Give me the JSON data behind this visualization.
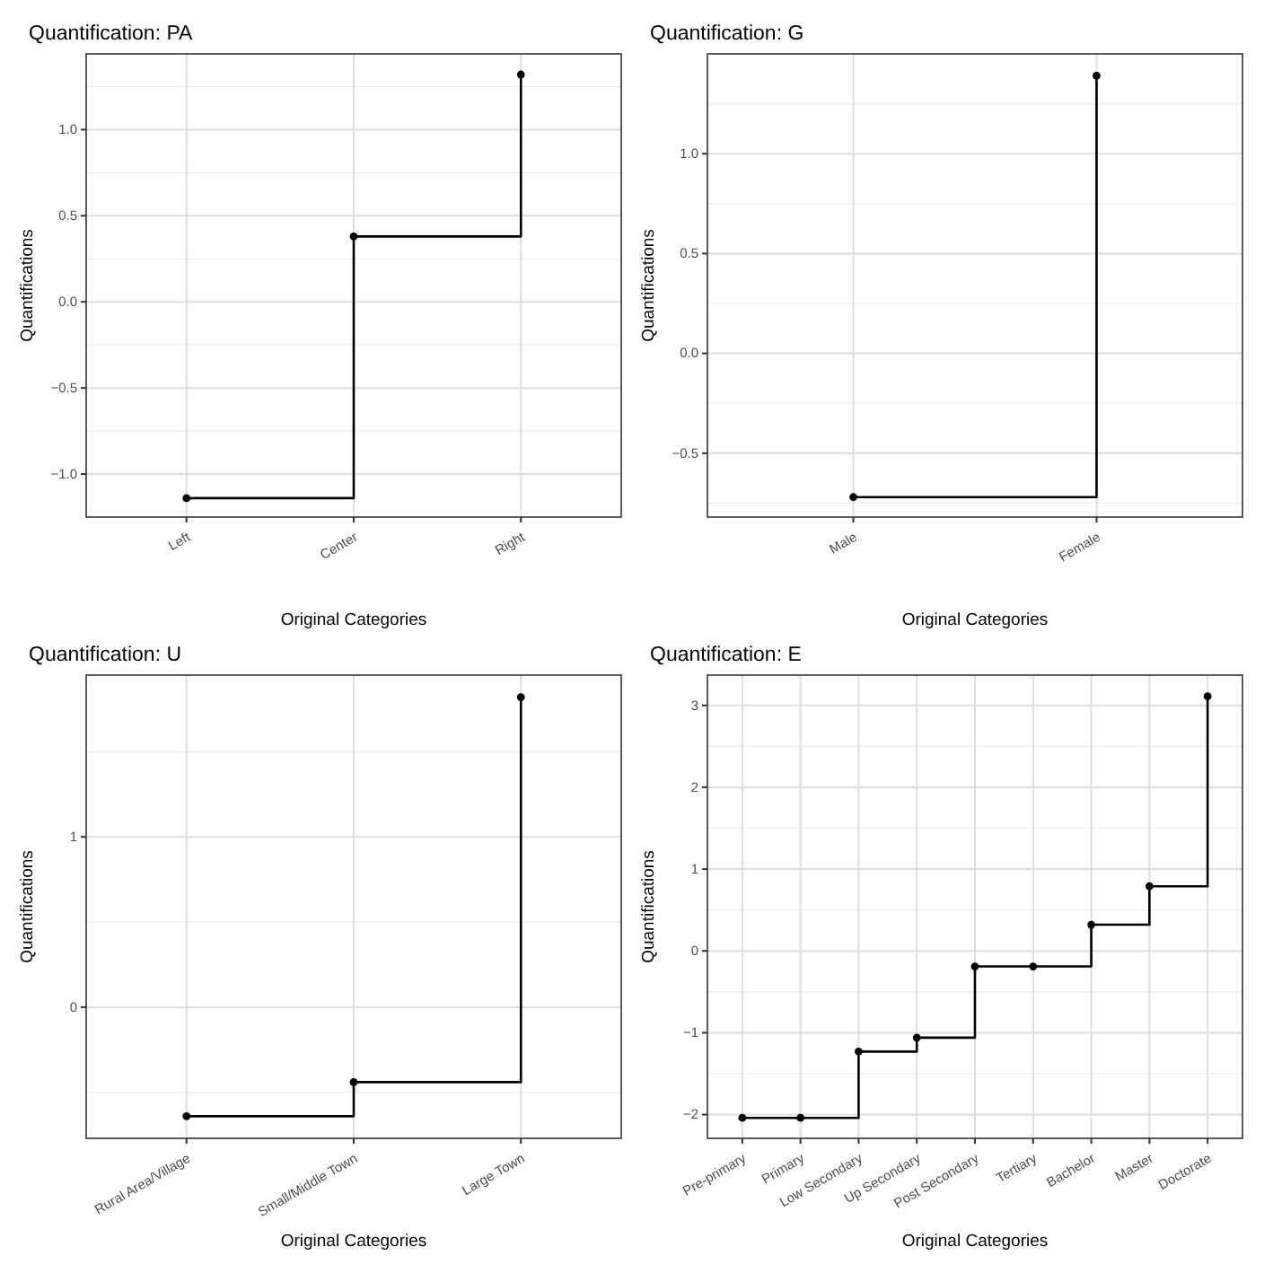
{
  "chart_data": [
    {
      "type": "step",
      "title": "Quantification: PA",
      "xlabel": "Original Categories",
      "ylabel": "Quantifications",
      "categories": [
        "Left",
        "Center",
        "Right"
      ],
      "values": [
        -1.14,
        0.38,
        1.32
      ],
      "color": "#000000",
      "ylim": [
        -1.25,
        1.44
      ],
      "yticks": [
        {
          "value": -1,
          "label": "−1.0"
        },
        {
          "value": -0.5,
          "label": "−0.5"
        },
        {
          "value": 0,
          "label": "0.0"
        },
        {
          "value": 0.5,
          "label": "0.5"
        },
        {
          "value": 1,
          "label": "1.0"
        }
      ],
      "grid": true,
      "marker": "circle"
    },
    {
      "type": "step",
      "title": "Quantification: G",
      "xlabel": "Original Categories",
      "ylabel": "Quantifications",
      "categories": [
        "Male",
        "Female"
      ],
      "values": [
        -0.72,
        1.39
      ],
      "color": "#000000",
      "ylim": [
        -0.82,
        1.5
      ],
      "yticks": [
        {
          "value": -0.5,
          "label": "−0.5"
        },
        {
          "value": 0,
          "label": "0.0"
        },
        {
          "value": 0.5,
          "label": "0.5"
        },
        {
          "value": 1,
          "label": "1.0"
        }
      ],
      "grid": true,
      "marker": "circle"
    },
    {
      "type": "step",
      "title": "Quantification: U",
      "xlabel": "Original Categories",
      "ylabel": "Quantifications",
      "categories": [
        "Rural Area/Village",
        "Small/Middle Town",
        "Large Town"
      ],
      "values": [
        -0.64,
        -0.44,
        1.82
      ],
      "color": "#000000",
      "ylim": [
        -0.77,
        1.95
      ],
      "yticks": [
        0,
        1
      ],
      "grid": true,
      "marker": "circle"
    },
    {
      "type": "step",
      "title": "Quantification: E",
      "xlabel": "Original Categories",
      "ylabel": "Quantifications",
      "categories": [
        "Pre-primary",
        "Primary",
        "Low Secondary",
        "Up Secondary",
        "Post Secondary",
        "Tertiary",
        "Bachelor",
        "Master",
        "Doctorate"
      ],
      "values": [
        -2.04,
        -2.04,
        -1.23,
        -1.06,
        -0.19,
        -0.19,
        0.32,
        0.79,
        3.11
      ],
      "color": "#000000",
      "ylim": [
        -2.29,
        3.37
      ],
      "yticks": [
        {
          "value": -2,
          "label": "−2"
        },
        {
          "value": -1,
          "label": "−1"
        },
        0,
        1,
        2,
        3
      ],
      "grid": true,
      "marker": "circle"
    }
  ]
}
